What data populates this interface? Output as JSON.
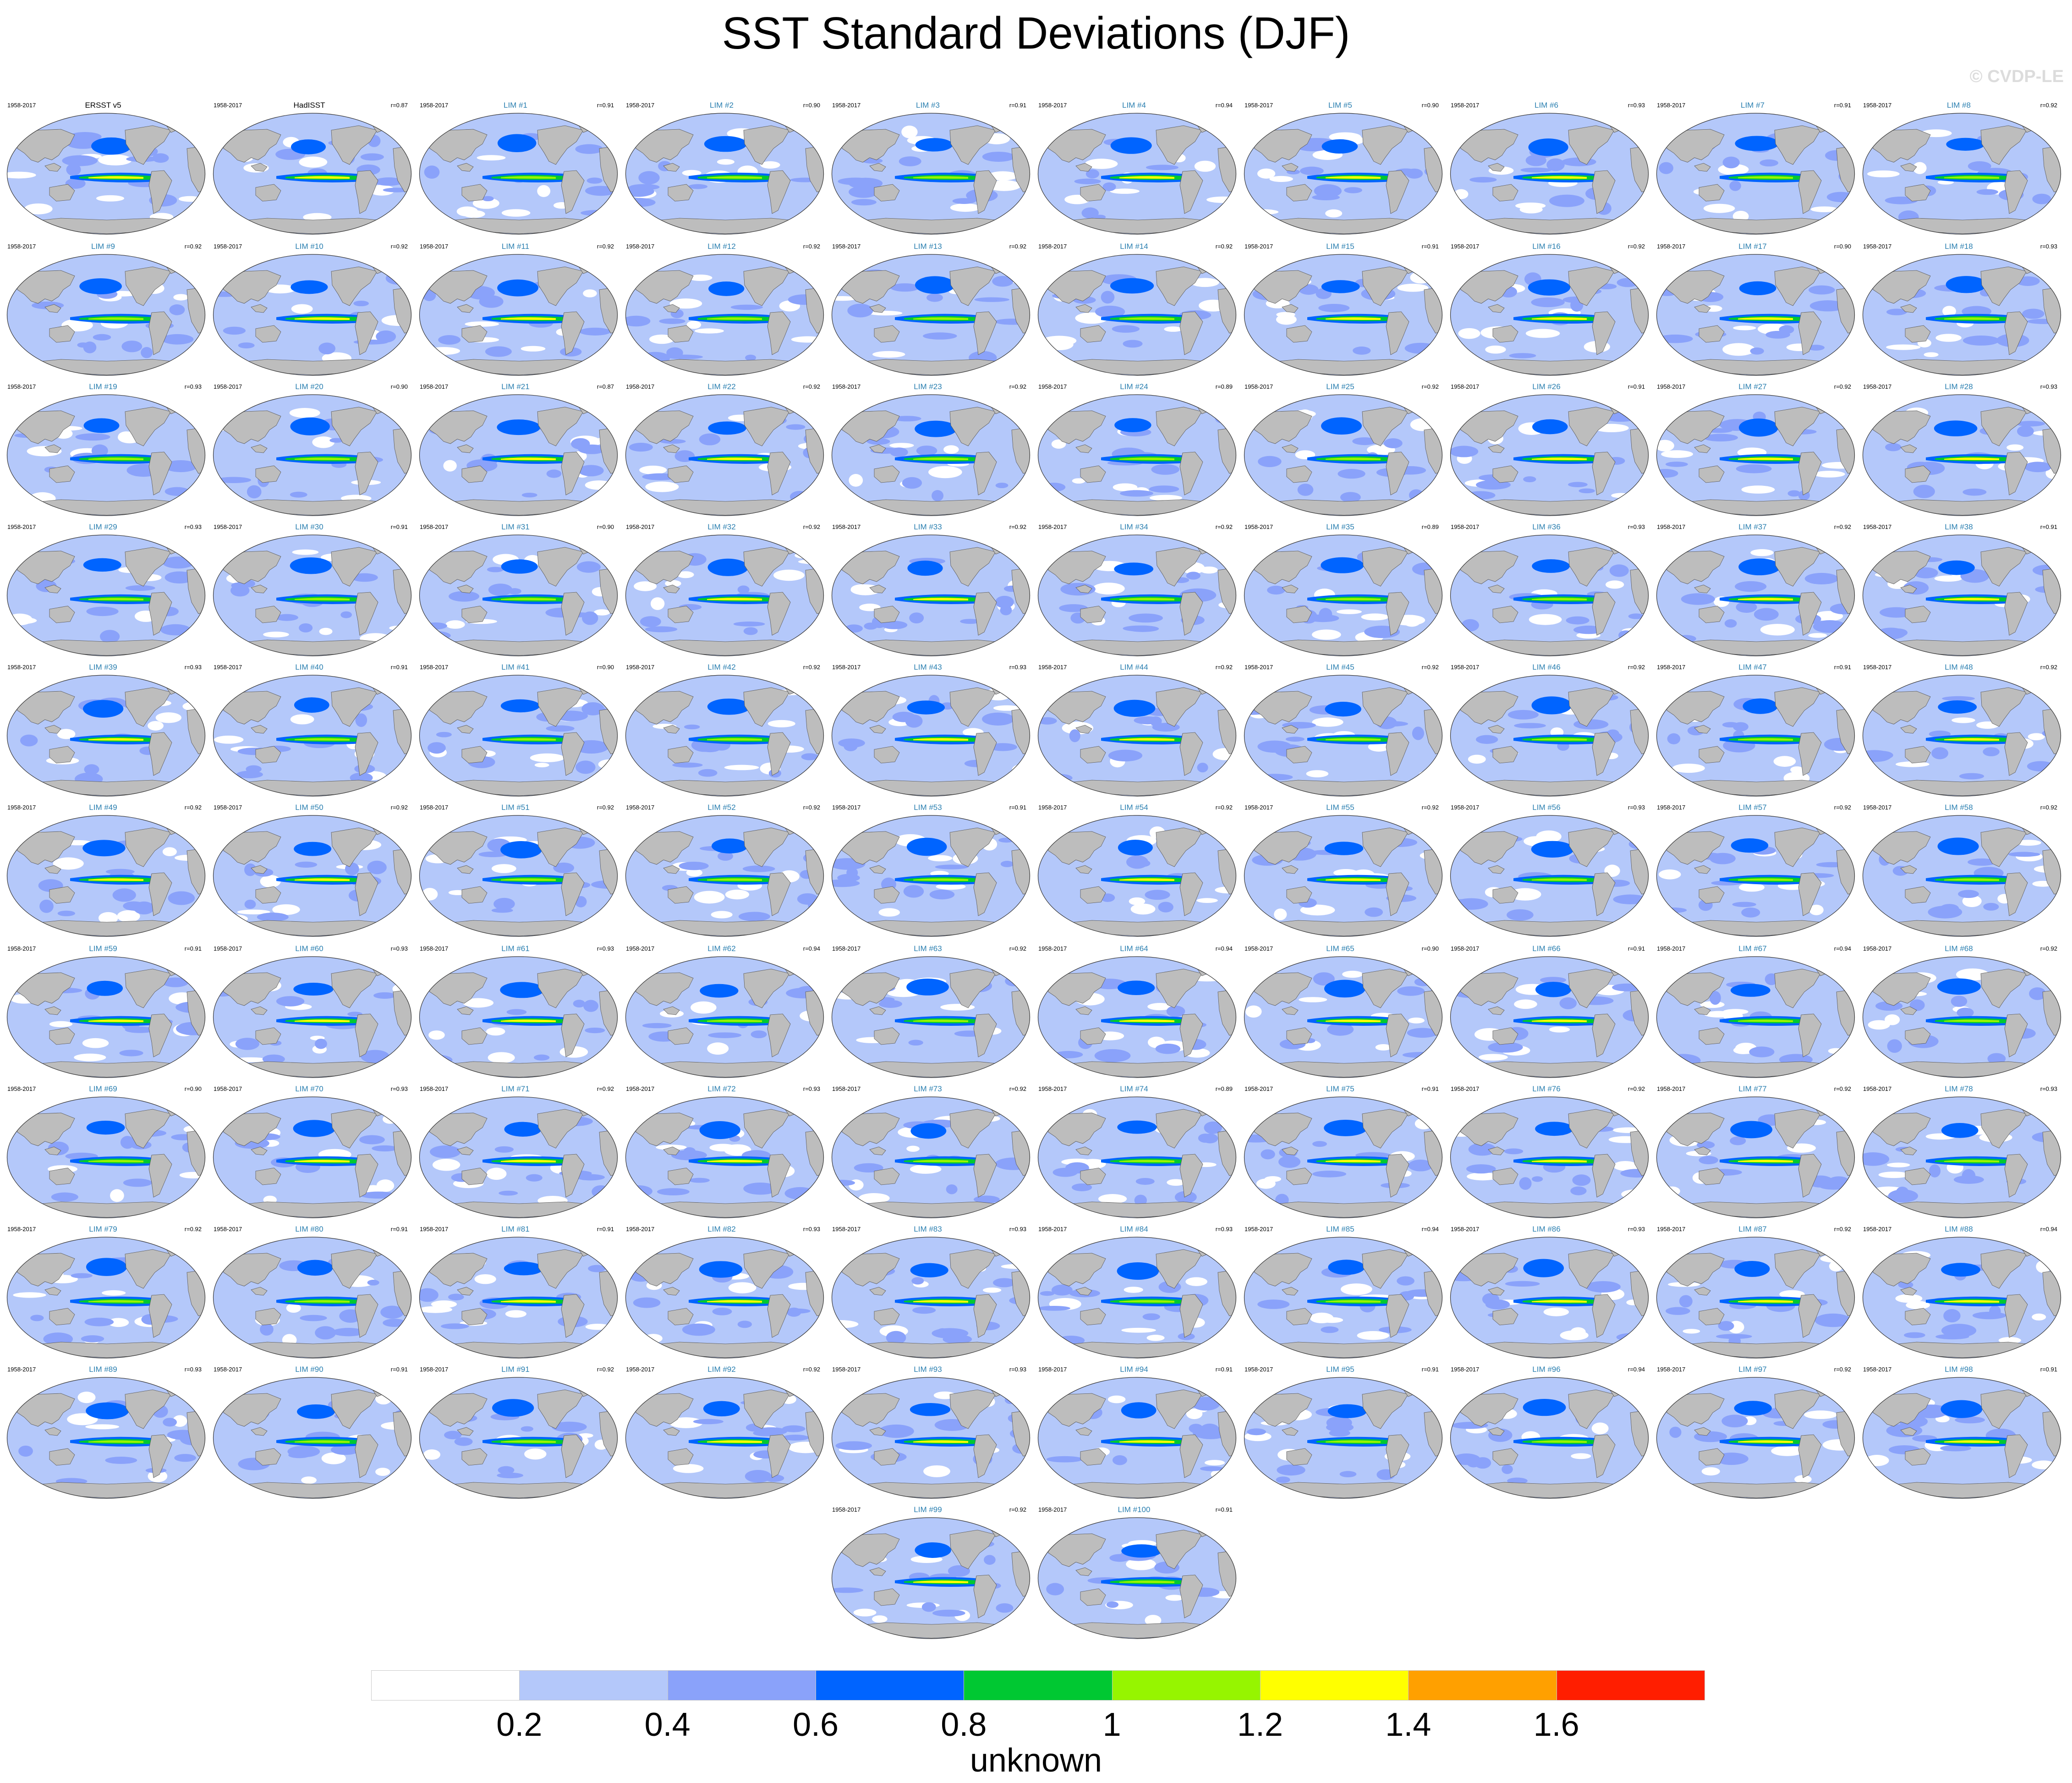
{
  "title": "SST Standard Deviations (DJF)",
  "watermark": "© CVDP-LE",
  "chart_data": {
    "type": "heatmap",
    "title": "SST Standard Deviations (DJF)",
    "period": "1958-2017",
    "colorbar": {
      "ticks": [
        "0.2",
        "0.4",
        "0.6",
        "0.8",
        "1",
        "1.2",
        "1.4",
        "1.6"
      ],
      "colors": [
        "#ffffff",
        "#b4c8fa",
        "#8aa2fa",
        "#0064ff",
        "#00c832",
        "#96f500",
        "#ffff00",
        "#ffa000",
        "#ff1e00"
      ],
      "label": "unknown"
    },
    "panels": [
      {
        "name": "ERSST v5",
        "r": ""
      },
      {
        "name": "HadISST",
        "r": "r=0.87"
      },
      {
        "name": "LIM #1",
        "r": "r=0.91"
      },
      {
        "name": "LIM #2",
        "r": "r=0.90"
      },
      {
        "name": "LIM #3",
        "r": "r=0.91"
      },
      {
        "name": "LIM #4",
        "r": "r=0.94"
      },
      {
        "name": "LIM #5",
        "r": "r=0.90"
      },
      {
        "name": "LIM #6",
        "r": "r=0.93"
      },
      {
        "name": "LIM #7",
        "r": "r=0.91"
      },
      {
        "name": "LIM #8",
        "r": "r=0.92"
      },
      {
        "name": "LIM #9",
        "r": "r=0.92"
      },
      {
        "name": "LIM #10",
        "r": "r=0.92"
      },
      {
        "name": "LIM #11",
        "r": "r=0.92"
      },
      {
        "name": "LIM #12",
        "r": "r=0.92"
      },
      {
        "name": "LIM #13",
        "r": "r=0.92"
      },
      {
        "name": "LIM #14",
        "r": "r=0.92"
      },
      {
        "name": "LIM #15",
        "r": "r=0.91"
      },
      {
        "name": "LIM #16",
        "r": "r=0.92"
      },
      {
        "name": "LIM #17",
        "r": "r=0.90"
      },
      {
        "name": "LIM #18",
        "r": "r=0.93"
      },
      {
        "name": "LIM #19",
        "r": "r=0.93"
      },
      {
        "name": "LIM #20",
        "r": "r=0.90"
      },
      {
        "name": "LIM #21",
        "r": "r=0.87"
      },
      {
        "name": "LIM #22",
        "r": "r=0.92"
      },
      {
        "name": "LIM #23",
        "r": "r=0.92"
      },
      {
        "name": "LIM #24",
        "r": "r=0.89"
      },
      {
        "name": "LIM #25",
        "r": "r=0.92"
      },
      {
        "name": "LIM #26",
        "r": "r=0.91"
      },
      {
        "name": "LIM #27",
        "r": "r=0.92"
      },
      {
        "name": "LIM #28",
        "r": "r=0.93"
      },
      {
        "name": "LIM #29",
        "r": "r=0.93"
      },
      {
        "name": "LIM #30",
        "r": "r=0.91"
      },
      {
        "name": "LIM #31",
        "r": "r=0.90"
      },
      {
        "name": "LIM #32",
        "r": "r=0.92"
      },
      {
        "name": "LIM #33",
        "r": "r=0.92"
      },
      {
        "name": "LIM #34",
        "r": "r=0.92"
      },
      {
        "name": "LIM #35",
        "r": "r=0.89"
      },
      {
        "name": "LIM #36",
        "r": "r=0.93"
      },
      {
        "name": "LIM #37",
        "r": "r=0.92"
      },
      {
        "name": "LIM #38",
        "r": "r=0.91"
      },
      {
        "name": "LIM #39",
        "r": "r=0.93"
      },
      {
        "name": "LIM #40",
        "r": "r=0.91"
      },
      {
        "name": "LIM #41",
        "r": "r=0.90"
      },
      {
        "name": "LIM #42",
        "r": "r=0.92"
      },
      {
        "name": "LIM #43",
        "r": "r=0.93"
      },
      {
        "name": "LIM #44",
        "r": "r=0.92"
      },
      {
        "name": "LIM #45",
        "r": "r=0.92"
      },
      {
        "name": "LIM #46",
        "r": "r=0.92"
      },
      {
        "name": "LIM #47",
        "r": "r=0.91"
      },
      {
        "name": "LIM #48",
        "r": "r=0.92"
      },
      {
        "name": "LIM #49",
        "r": "r=0.92"
      },
      {
        "name": "LIM #50",
        "r": "r=0.92"
      },
      {
        "name": "LIM #51",
        "r": "r=0.92"
      },
      {
        "name": "LIM #52",
        "r": "r=0.92"
      },
      {
        "name": "LIM #53",
        "r": "r=0.91"
      },
      {
        "name": "LIM #54",
        "r": "r=0.92"
      },
      {
        "name": "LIM #55",
        "r": "r=0.92"
      },
      {
        "name": "LIM #56",
        "r": "r=0.93"
      },
      {
        "name": "LIM #57",
        "r": "r=0.92"
      },
      {
        "name": "LIM #58",
        "r": "r=0.92"
      },
      {
        "name": "LIM #59",
        "r": "r=0.91"
      },
      {
        "name": "LIM #60",
        "r": "r=0.93"
      },
      {
        "name": "LIM #61",
        "r": "r=0.93"
      },
      {
        "name": "LIM #62",
        "r": "r=0.94"
      },
      {
        "name": "LIM #63",
        "r": "r=0.92"
      },
      {
        "name": "LIM #64",
        "r": "r=0.94"
      },
      {
        "name": "LIM #65",
        "r": "r=0.90"
      },
      {
        "name": "LIM #66",
        "r": "r=0.91"
      },
      {
        "name": "LIM #67",
        "r": "r=0.94"
      },
      {
        "name": "LIM #68",
        "r": "r=0.92"
      },
      {
        "name": "LIM #69",
        "r": "r=0.90"
      },
      {
        "name": "LIM #70",
        "r": "r=0.93"
      },
      {
        "name": "LIM #71",
        "r": "r=0.92"
      },
      {
        "name": "LIM #72",
        "r": "r=0.93"
      },
      {
        "name": "LIM #73",
        "r": "r=0.92"
      },
      {
        "name": "LIM #74",
        "r": "r=0.89"
      },
      {
        "name": "LIM #75",
        "r": "r=0.91"
      },
      {
        "name": "LIM #76",
        "r": "r=0.92"
      },
      {
        "name": "LIM #77",
        "r": "r=0.92"
      },
      {
        "name": "LIM #78",
        "r": "r=0.93"
      },
      {
        "name": "LIM #79",
        "r": "r=0.92"
      },
      {
        "name": "LIM #80",
        "r": "r=0.91"
      },
      {
        "name": "LIM #81",
        "r": "r=0.91"
      },
      {
        "name": "LIM #82",
        "r": "r=0.93"
      },
      {
        "name": "LIM #83",
        "r": "r=0.93"
      },
      {
        "name": "LIM #84",
        "r": "r=0.93"
      },
      {
        "name": "LIM #85",
        "r": "r=0.94"
      },
      {
        "name": "LIM #86",
        "r": "r=0.93"
      },
      {
        "name": "LIM #87",
        "r": "r=0.92"
      },
      {
        "name": "LIM #88",
        "r": "r=0.94"
      },
      {
        "name": "LIM #89",
        "r": "r=0.93"
      },
      {
        "name": "LIM #90",
        "r": "r=0.91"
      },
      {
        "name": "LIM #91",
        "r": "r=0.92"
      },
      {
        "name": "LIM #92",
        "r": "r=0.92"
      },
      {
        "name": "LIM #93",
        "r": "r=0.93"
      },
      {
        "name": "LIM #94",
        "r": "r=0.91"
      },
      {
        "name": "LIM #95",
        "r": "r=0.91"
      },
      {
        "name": "LIM #96",
        "r": "r=0.94"
      },
      {
        "name": "LIM #97",
        "r": "r=0.92"
      },
      {
        "name": "LIM #98",
        "r": "r=0.91"
      },
      {
        "name": "LIM #99",
        "r": "r=0.92"
      },
      {
        "name": "LIM #100",
        "r": "r=0.91"
      }
    ]
  }
}
